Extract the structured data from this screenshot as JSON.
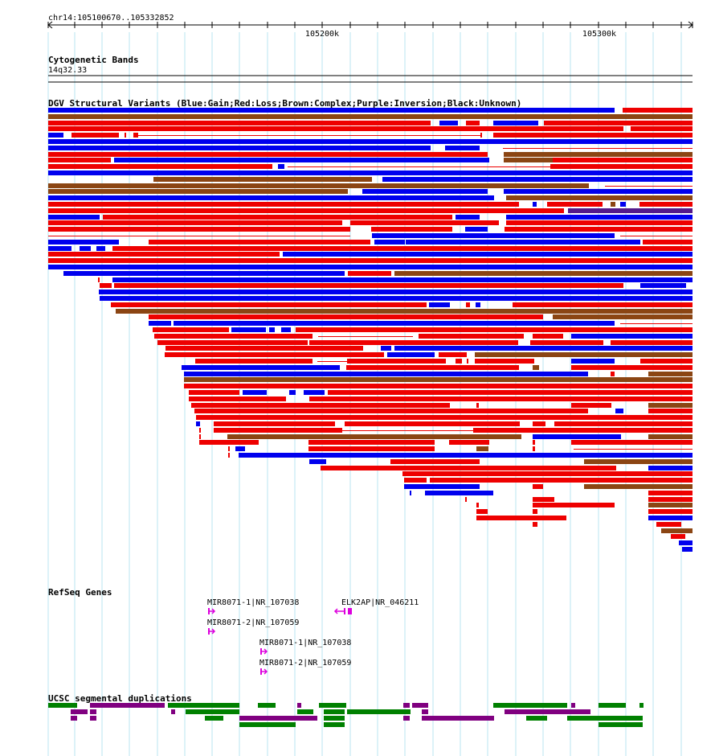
{
  "locus": "chr14:105100670..105332852",
  "ruler": {
    "ticks": [
      {
        "label": "105200k",
        "pos": 105200000
      },
      {
        "label": "105300k",
        "pos": 105300000
      }
    ]
  },
  "tracks": {
    "cytoband": {
      "title": "Cytogenetic Bands",
      "band": "14q32.33"
    },
    "dgv": {
      "title": "DGV Structural Variants (Blue:Gain;Red:Loss;Brown:Complex;Purple:Inversion;Black:Unknown)"
    },
    "refseq": {
      "title": "RefSeq Genes",
      "genes": [
        {
          "label": "MIR8071-1|NR_107038",
          "strand": "+"
        },
        {
          "label": "MIR8071-2|NR_107059",
          "strand": "+"
        },
        {
          "label": "MIR8071-1|NR_107038",
          "strand": "+"
        },
        {
          "label": "MIR8071-2|NR_107059",
          "strand": "+"
        },
        {
          "label": "ELK2AP|NR_046211",
          "strand": "-"
        }
      ]
    },
    "segdups": {
      "title": "UCSC segmental duplications"
    }
  },
  "colors": {
    "gain": "#0000ee",
    "loss": "#ee0000",
    "complex": "#8b4513",
    "inversion": "#551a8b",
    "gene": "#dd00dd",
    "segdup_green": "#008000",
    "segdup_purple": "#800080",
    "grid": "#b9e6f2"
  }
}
